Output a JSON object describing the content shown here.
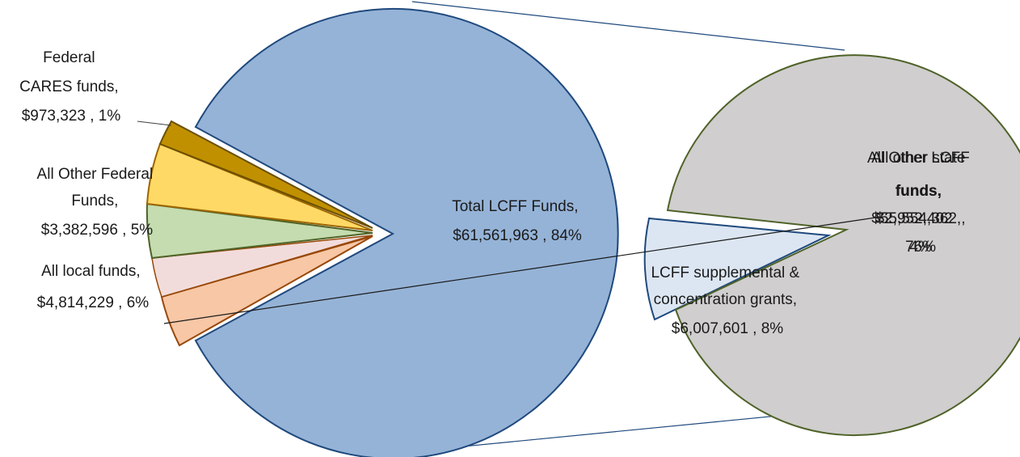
{
  "chart_data": {
    "type": "pie",
    "variant": "bar-of-pie",
    "title": "",
    "main_pie": {
      "slices": [
        {
          "name": "Total LCFF Funds",
          "value": 61561963,
          "percent": 84,
          "color": "#95b3d7",
          "stroke": "#1f497d",
          "label_lines": [
            "Total LCFF Funds,",
            "$61,561,963 , 84%"
          ]
        },
        {
          "name": "All local funds",
          "value": 4814229,
          "percent": 6,
          "color": "#f7c7a6",
          "stroke": "#984807",
          "label_lines": [
            "All local funds,",
            "$4,814,229 , 6%"
          ]
        },
        {
          "name": "All Other Federal Funds",
          "value": 3382596,
          "percent": 5,
          "color": "#c4dcaf",
          "stroke": "#4f6228",
          "label_lines": [
            "All Other Federal",
            "Funds,",
            "$3,382,596 , 5%"
          ]
        },
        {
          "name": "All Other Federal Funds (upper)",
          "value": 3382596,
          "percent": 5,
          "color": "#ffd966",
          "stroke": "#9c6500",
          "label_lines": []
        },
        {
          "name": "Federal CARES funds",
          "value": 973323,
          "percent": 1,
          "color": "#c09000",
          "stroke": "#6b4f00",
          "label_lines": [
            "Federal",
            "CARES funds,",
            "$973,323 , 1%"
          ]
        }
      ]
    },
    "secondary_pie": {
      "slices": [
        {
          "name": "LCFF supplemental & concentration grants",
          "value": 6007601,
          "percent": 8,
          "color": "#dce6f2",
          "stroke": "#1f497d",
          "label_lines": [
            "LCFF supplemental &",
            "concentration grants,",
            "$6,007,601 , 8%"
          ]
        },
        {
          "name": "All Other LCFF funds",
          "value": 55554362,
          "percent": 76,
          "color": "#d0cece",
          "stroke": "#4f6228",
          "label_lines": [
            "All Other LCFF",
            "funds,",
            "$55,554,362 ,",
            "76%"
          ]
        },
        {
          "name": "All other state funds",
          "value": 2952402,
          "percent": 4,
          "color": "#d0cece",
          "stroke": "#4f6228",
          "label_lines": [
            "All other state",
            "funds,",
            "$2,952,402 ,",
            "4%"
          ]
        }
      ]
    },
    "legend": "none"
  }
}
